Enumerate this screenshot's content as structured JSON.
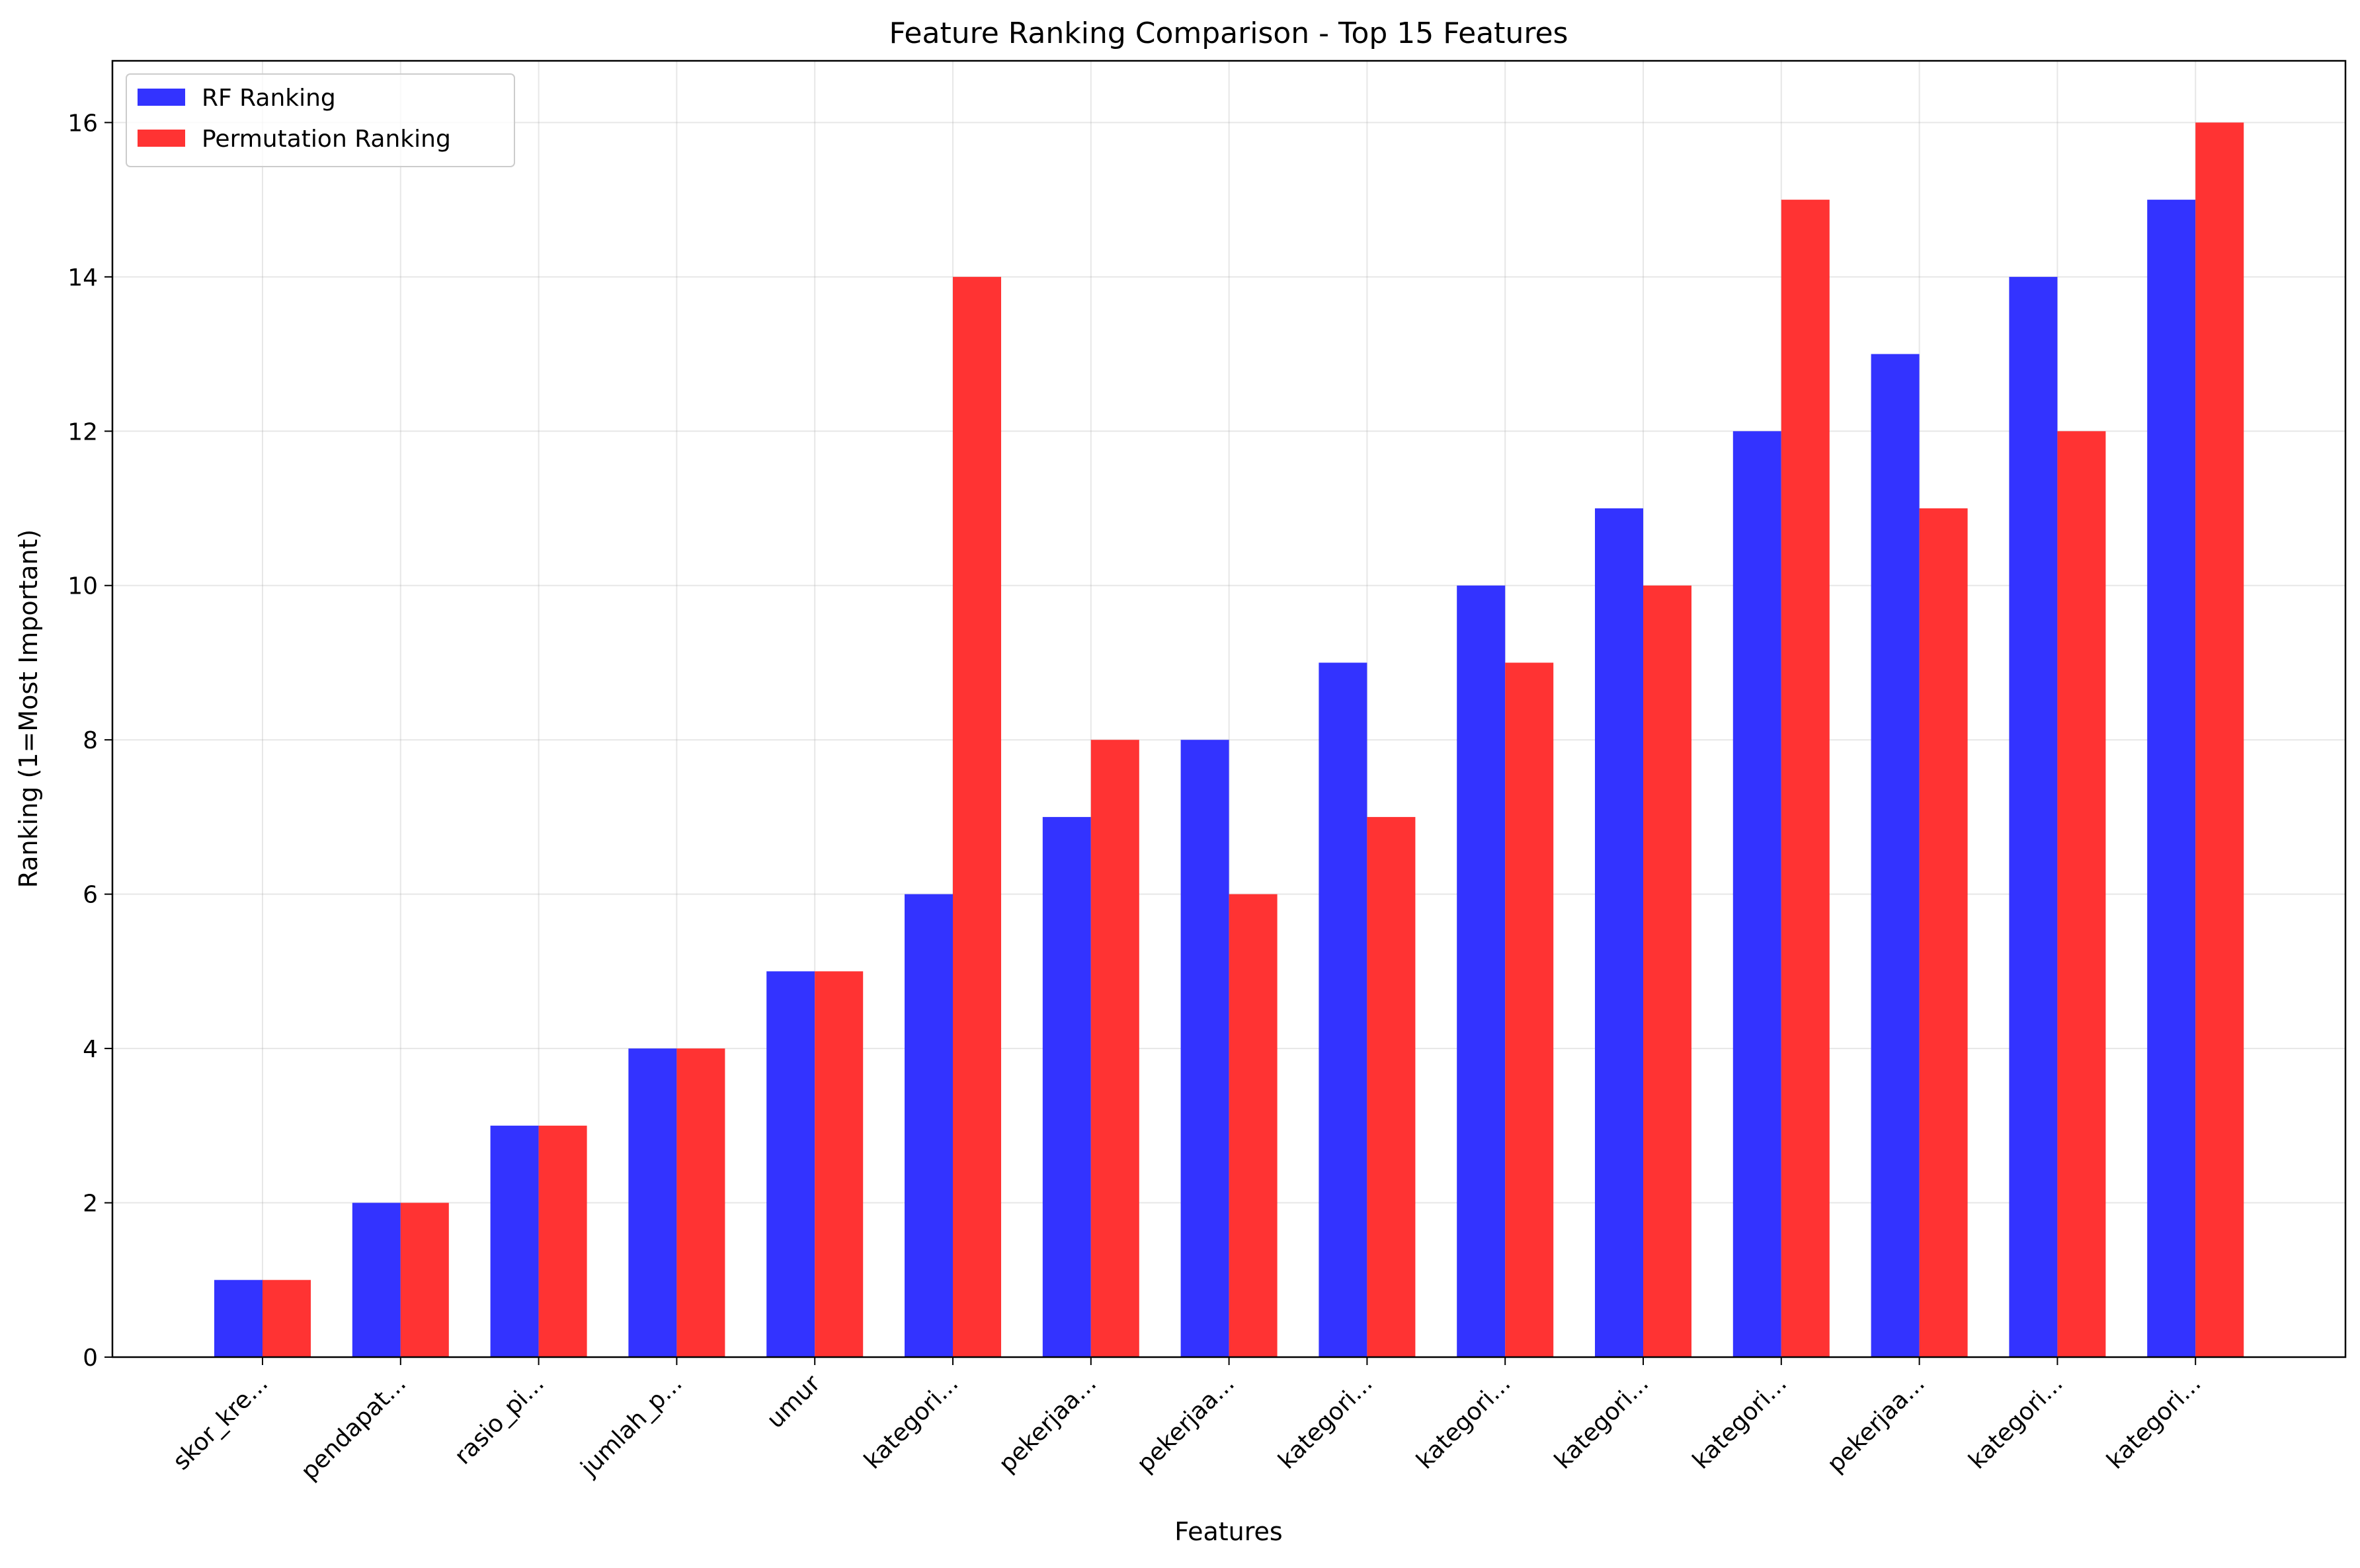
{
  "chart_data": {
    "type": "bar",
    "title": "Feature Ranking Comparison - Top 15 Features",
    "xlabel": "Features",
    "ylabel": "Ranking (1=Most Important)",
    "categories": [
      "skor_kre...",
      "pendapat...",
      "rasio_pi...",
      "jumlah_p...",
      "umur",
      "kategori...",
      "pekerjaa...",
      "pekerjaa...",
      "kategori...",
      "kategori...",
      "kategori...",
      "kategori...",
      "pekerjaa...",
      "kategori...",
      "kategori..."
    ],
    "series": [
      {
        "name": "RF Ranking",
        "color": "#3333ff",
        "values": [
          1,
          2,
          3,
          4,
          5,
          6,
          7,
          8,
          9,
          10,
          11,
          12,
          13,
          14,
          15
        ]
      },
      {
        "name": "Permutation Ranking",
        "color": "#ff3333",
        "values": [
          1,
          2,
          3,
          4,
          5,
          14,
          8,
          6,
          7,
          9,
          10,
          15,
          11,
          12,
          16
        ]
      }
    ],
    "ylim": [
      0,
      16.8
    ],
    "yticks": [
      0,
      2,
      4,
      6,
      8,
      10,
      12,
      14,
      16
    ],
    "grid": true,
    "legend_position": "upper left",
    "xtick_rotation": 45
  }
}
